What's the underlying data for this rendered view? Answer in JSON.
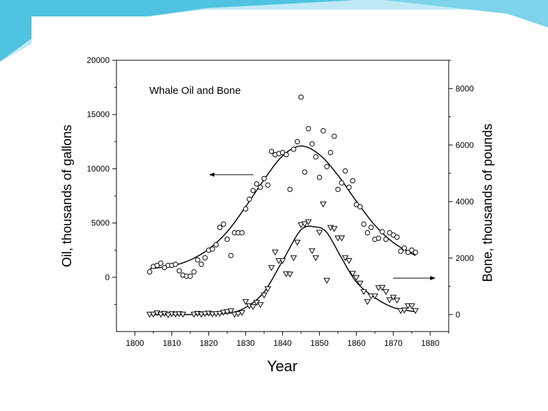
{
  "slide": {
    "accent_color": "#4fc3e0",
    "accent_light": "#bfe9f5"
  },
  "chart_data": {
    "type": "scatter",
    "title": "Whale Oil and Bone",
    "xlabel": "Year",
    "ylabel_left": "Oil, thousands of gallons",
    "ylabel_right": "Bone, thousands of pounds",
    "xlim": [
      1795,
      1885
    ],
    "ylim_left": [
      -5000,
      20000
    ],
    "ylim_right": [
      -600,
      9000
    ],
    "x_ticks": [
      1800,
      1810,
      1820,
      1830,
      1840,
      1850,
      1860,
      1870,
      1880
    ],
    "y_ticks_left": [
      0,
      5000,
      10000,
      15000,
      20000
    ],
    "y_ticks_right": [
      0,
      2000,
      4000,
      6000,
      8000
    ],
    "annotations": [
      "arrow pointing left toward oil axis",
      "arrow pointing right toward bone axis"
    ],
    "series": [
      {
        "marker": "circle",
        "axis": "left",
        "points": [
          [
            1804,
            500
          ],
          [
            1805,
            1000
          ],
          [
            1806,
            1100
          ],
          [
            1807,
            1300
          ],
          [
            1808,
            900
          ],
          [
            1809,
            1100
          ],
          [
            1810,
            1100
          ],
          [
            1811,
            1200
          ],
          [
            1812,
            600
          ],
          [
            1813,
            200
          ],
          [
            1814,
            100
          ],
          [
            1815,
            100
          ],
          [
            1816,
            500
          ],
          [
            1817,
            1600
          ],
          [
            1818,
            1200
          ],
          [
            1819,
            1800
          ],
          [
            1820,
            2500
          ],
          [
            1821,
            2600
          ],
          [
            1822,
            3000
          ],
          [
            1823,
            4600
          ],
          [
            1824,
            4900
          ],
          [
            1825,
            3500
          ],
          [
            1826,
            2000
          ],
          [
            1827,
            4100
          ],
          [
            1828,
            4100
          ],
          [
            1829,
            4100
          ],
          [
            1830,
            6300
          ],
          [
            1831,
            7200
          ],
          [
            1832,
            8000
          ],
          [
            1833,
            8600
          ],
          [
            1834,
            8300
          ],
          [
            1835,
            9100
          ],
          [
            1836,
            8500
          ],
          [
            1837,
            11600
          ],
          [
            1838,
            11300
          ],
          [
            1839,
            11400
          ],
          [
            1840,
            11500
          ],
          [
            1841,
            11300
          ],
          [
            1842,
            8100
          ],
          [
            1843,
            11800
          ],
          [
            1844,
            12500
          ],
          [
            1845,
            16600
          ],
          [
            1846,
            9700
          ],
          [
            1847,
            13700
          ],
          [
            1848,
            12300
          ],
          [
            1849,
            11100
          ],
          [
            1850,
            9200
          ],
          [
            1851,
            13500
          ],
          [
            1852,
            10200
          ],
          [
            1853,
            11500
          ],
          [
            1854,
            13000
          ],
          [
            1855,
            8100
          ],
          [
            1856,
            8700
          ],
          [
            1857,
            9800
          ],
          [
            1858,
            8300
          ],
          [
            1859,
            8900
          ],
          [
            1860,
            6700
          ],
          [
            1861,
            6500
          ],
          [
            1862,
            4900
          ],
          [
            1863,
            4100
          ],
          [
            1864,
            4600
          ],
          [
            1865,
            3500
          ],
          [
            1866,
            3600
          ],
          [
            1867,
            4200
          ],
          [
            1868,
            3500
          ],
          [
            1869,
            4100
          ],
          [
            1870,
            3900
          ],
          [
            1871,
            3700
          ],
          [
            1872,
            2400
          ],
          [
            1873,
            2700
          ],
          [
            1874,
            2300
          ],
          [
            1875,
            2500
          ],
          [
            1876,
            2300
          ]
        ]
      },
      {
        "marker": "triangle-down",
        "axis": "right",
        "points": [
          [
            1804,
            0
          ],
          [
            1805,
            0
          ],
          [
            1806,
            50
          ],
          [
            1807,
            0
          ],
          [
            1808,
            30
          ],
          [
            1809,
            -20
          ],
          [
            1810,
            20
          ],
          [
            1811,
            0
          ],
          [
            1812,
            20
          ],
          [
            1813,
            0
          ],
          [
            1816,
            0
          ],
          [
            1817,
            30
          ],
          [
            1818,
            0
          ],
          [
            1819,
            20
          ],
          [
            1820,
            40
          ],
          [
            1821,
            10
          ],
          [
            1822,
            20
          ],
          [
            1823,
            30
          ],
          [
            1824,
            70
          ],
          [
            1825,
            90
          ],
          [
            1826,
            120
          ],
          [
            1827,
            0
          ],
          [
            1828,
            20
          ],
          [
            1829,
            60
          ],
          [
            1830,
            450
          ],
          [
            1831,
            300
          ],
          [
            1832,
            270
          ],
          [
            1833,
            420
          ],
          [
            1834,
            340
          ],
          [
            1835,
            680
          ],
          [
            1836,
            900
          ],
          [
            1837,
            1650
          ],
          [
            1838,
            2200
          ],
          [
            1839,
            1900
          ],
          [
            1840,
            1900
          ],
          [
            1841,
            1430
          ],
          [
            1842,
            1420
          ],
          [
            1843,
            2000
          ],
          [
            1844,
            2550
          ],
          [
            1845,
            3170
          ],
          [
            1846,
            3200
          ],
          [
            1847,
            3270
          ],
          [
            1848,
            2250
          ],
          [
            1849,
            2000
          ],
          [
            1850,
            2900
          ],
          [
            1851,
            3900
          ],
          [
            1852,
            1200
          ],
          [
            1853,
            3070
          ],
          [
            1854,
            3030
          ],
          [
            1855,
            2700
          ],
          [
            1856,
            2700
          ],
          [
            1857,
            2000
          ],
          [
            1858,
            1900
          ],
          [
            1859,
            1450
          ],
          [
            1860,
            1300
          ],
          [
            1861,
            1100
          ],
          [
            1862,
            800
          ],
          [
            1863,
            450
          ],
          [
            1864,
            650
          ],
          [
            1865,
            650
          ],
          [
            1866,
            940
          ],
          [
            1867,
            950
          ],
          [
            1868,
            800
          ],
          [
            1869,
            510
          ],
          [
            1870,
            600
          ],
          [
            1871,
            500
          ],
          [
            1872,
            130
          ],
          [
            1873,
            150
          ],
          [
            1874,
            300
          ],
          [
            1875,
            300
          ],
          [
            1876,
            130
          ]
        ]
      }
    ],
    "fits": [
      {
        "axis": "left",
        "points": [
          [
            1804,
            800
          ],
          [
            1810,
            1050
          ],
          [
            1815,
            1600
          ],
          [
            1820,
            2600
          ],
          [
            1825,
            4200
          ],
          [
            1830,
            6500
          ],
          [
            1835,
            9000
          ],
          [
            1840,
            11200
          ],
          [
            1845,
            12100
          ],
          [
            1850,
            11300
          ],
          [
            1855,
            9400
          ],
          [
            1860,
            7000
          ],
          [
            1865,
            4800
          ],
          [
            1870,
            3200
          ],
          [
            1876,
            2000
          ]
        ]
      },
      {
        "axis": "right",
        "points": [
          [
            1804,
            0
          ],
          [
            1815,
            0
          ],
          [
            1825,
            50
          ],
          [
            1830,
            250
          ],
          [
            1835,
            800
          ],
          [
            1840,
            1900
          ],
          [
            1845,
            3000
          ],
          [
            1849,
            3100
          ],
          [
            1852,
            2900
          ],
          [
            1856,
            2000
          ],
          [
            1860,
            1150
          ],
          [
            1865,
            600
          ],
          [
            1870,
            250
          ],
          [
            1876,
            100
          ]
        ]
      }
    ]
  }
}
